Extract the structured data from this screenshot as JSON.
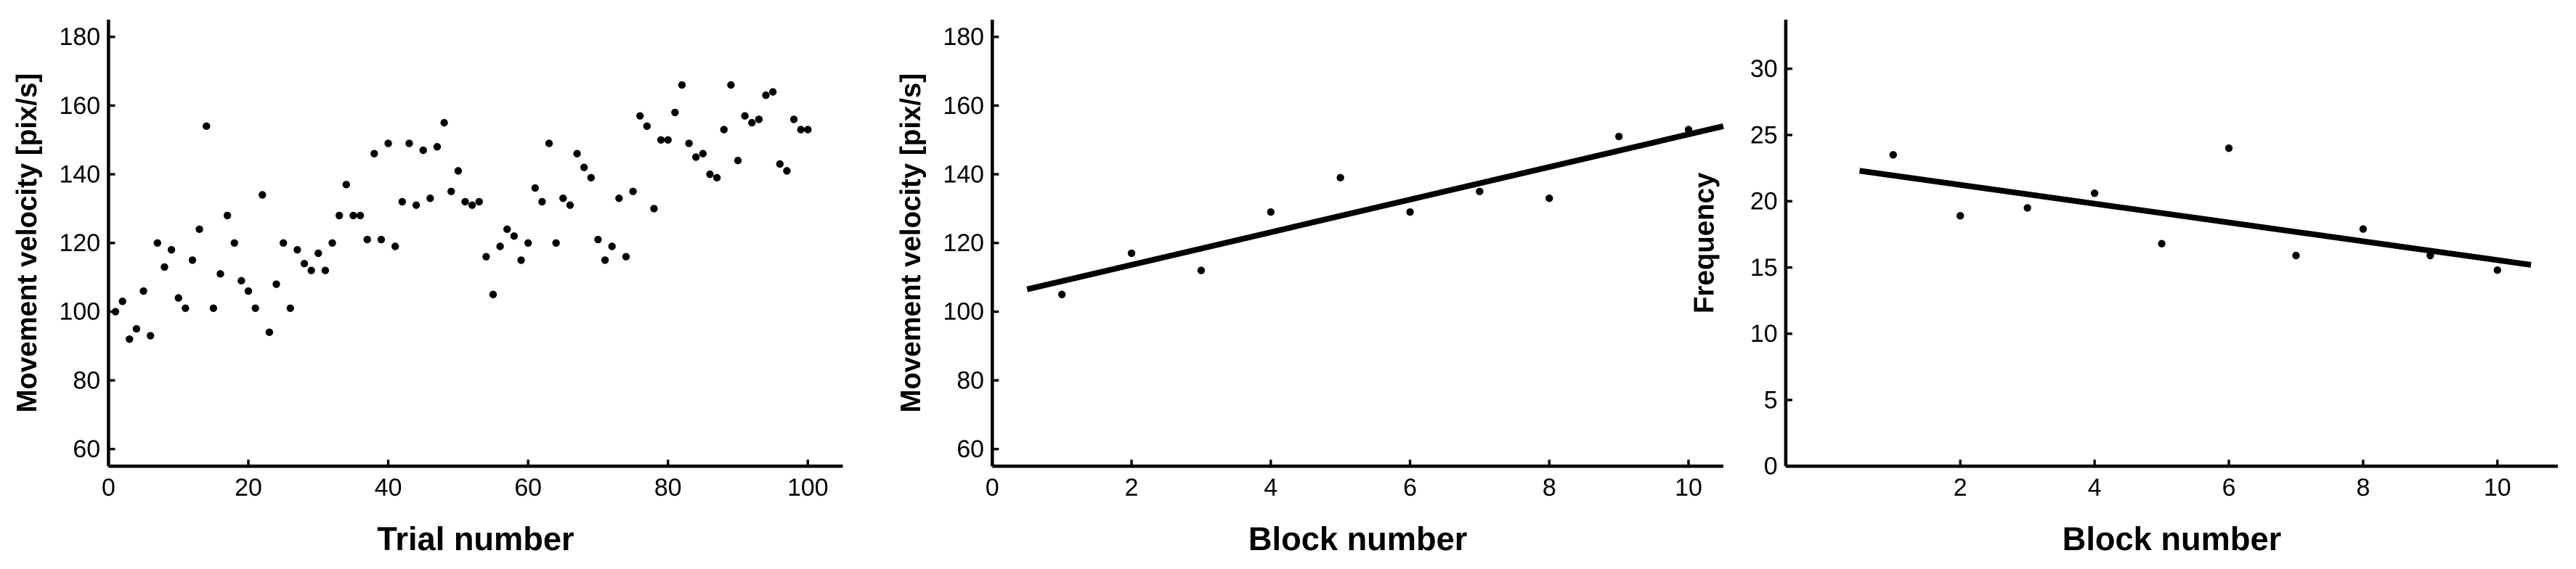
{
  "chart_data": [
    {
      "type": "scatter",
      "ylabel": "Movement velocity [pix/s]",
      "xlabel": "Trial number",
      "color": "#000000",
      "x": [
        1,
        2,
        3,
        4,
        5,
        6,
        7,
        8,
        9,
        10,
        11,
        12,
        13,
        14,
        15,
        16,
        17,
        18,
        19,
        20,
        21,
        22,
        23,
        24,
        25,
        26,
        27,
        28,
        29,
        30,
        31,
        32,
        33,
        34,
        35,
        36,
        37,
        38,
        39,
        40,
        41,
        42,
        43,
        44,
        45,
        46,
        47,
        48,
        49,
        50,
        51,
        52,
        53,
        54,
        55,
        56,
        57,
        58,
        59,
        60,
        61,
        62,
        63,
        64,
        65,
        66,
        67,
        68,
        69,
        70,
        71,
        72,
        73,
        74,
        75,
        76,
        77,
        78,
        79,
        80,
        81,
        82,
        83,
        84,
        85,
        86,
        87,
        88,
        89,
        90,
        91,
        92,
        93,
        94,
        95,
        96,
        97,
        98,
        99,
        100
      ],
      "values": [
        100,
        103,
        92,
        95,
        106,
        93,
        120,
        113,
        118,
        104,
        101,
        115,
        124,
        154,
        101,
        111,
        128,
        120,
        109,
        106,
        101,
        134,
        94,
        108,
        120,
        101,
        118,
        114,
        112,
        117,
        112,
        120,
        128,
        137,
        128,
        128,
        121,
        146,
        121,
        149,
        119,
        132,
        149,
        131,
        147,
        133,
        148,
        155,
        135,
        141,
        132,
        131,
        132,
        116,
        105,
        119,
        124,
        122,
        115,
        120,
        136,
        132,
        149,
        120,
        133,
        131,
        146,
        142,
        139,
        121,
        115,
        119,
        133,
        116,
        135,
        157,
        154,
        130,
        150,
        150,
        158,
        166,
        149,
        145,
        146,
        140,
        139,
        153,
        166,
        144,
        157,
        155,
        156,
        163,
        164,
        143,
        141,
        156,
        153,
        153
      ],
      "xlim": [
        0,
        105
      ],
      "ylim": [
        55,
        185
      ],
      "xticks": [
        0,
        20,
        40,
        60,
        80,
        100
      ],
      "yticks": [
        60,
        80,
        100,
        120,
        140,
        160,
        180
      ]
    },
    {
      "type": "scatter",
      "ylabel": "Movement velocity [pix/s]",
      "xlabel": "Block number",
      "color": "#000000",
      "x": [
        1,
        2,
        3,
        4,
        5,
        6,
        7,
        8,
        9,
        10
      ],
      "values": [
        105,
        117,
        112,
        129,
        139,
        129,
        135,
        133,
        151,
        153
      ],
      "fit": {
        "x": [
          0.5,
          10.5
        ],
        "values": [
          106.5,
          154
        ]
      },
      "xlim": [
        0,
        10.5
      ],
      "ylim": [
        55,
        185
      ],
      "xticks": [
        0,
        2,
        4,
        6,
        8,
        10
      ],
      "yticks": [
        60,
        80,
        100,
        120,
        140,
        160,
        180
      ]
    },
    {
      "type": "scatter",
      "ylabel": "Frequency",
      "xlabel": "Block number",
      "color": "#000000",
      "x": [
        1,
        2,
        3,
        4,
        5,
        6,
        7,
        8,
        9,
        10
      ],
      "values": [
        23.5,
        18.9,
        19.5,
        20.6,
        16.8,
        24,
        15.9,
        17.9,
        15.9,
        14.8
      ],
      "fit": {
        "x": [
          0.5,
          10.5
        ],
        "values": [
          22.3,
          15.2
        ]
      },
      "xlim": [
        -0.6,
        10.9
      ],
      "ylim": [
        0,
        33.7
      ],
      "xticks": [
        2,
        4,
        6,
        8,
        10
      ],
      "yticks": [
        0,
        5,
        10,
        15,
        20,
        25,
        30
      ]
    }
  ]
}
